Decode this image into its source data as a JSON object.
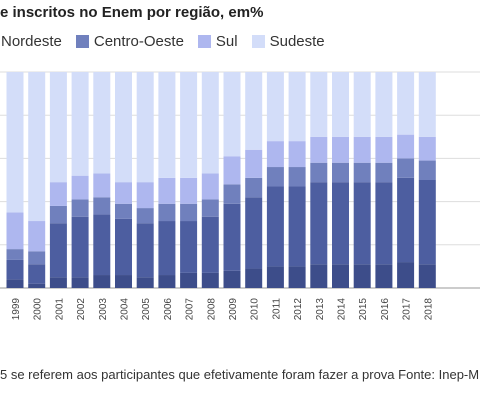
{
  "title": "e inscritos no Enem por região, em%",
  "note": "5 se referem aos participantes que efetivamente foram fazer a prova Fonte: Inep-MEC",
  "chart_data": {
    "type": "bar",
    "stacked": true,
    "ylim": [
      0,
      100
    ],
    "grid": true,
    "legend_position": "top-left",
    "categories": [
      "1999",
      "2000",
      "2001",
      "2002",
      "2003",
      "2004",
      "2005",
      "2006",
      "2007",
      "2008",
      "2009",
      "2010",
      "2011",
      "2012",
      "2013",
      "2014",
      "2015",
      "2016",
      "2017",
      "2018"
    ],
    "series": [
      {
        "name": "",
        "color": "#3d4d8a",
        "values": [
          4,
          2,
          5,
          5,
          6,
          6,
          5,
          6,
          7,
          7,
          8,
          9,
          10,
          10,
          11,
          11,
          11,
          11,
          12,
          11
        ]
      },
      {
        "name": "Nordeste",
        "color": "#4d5ea0",
        "values": [
          9,
          9,
          25,
          28,
          28,
          26,
          25,
          25,
          24,
          26,
          31,
          33,
          37,
          37,
          38,
          38,
          38,
          38,
          39,
          39
        ]
      },
      {
        "name": "Centro-Oeste",
        "color": "#7080bd",
        "values": [
          5,
          6,
          8,
          8,
          8,
          7,
          7,
          8,
          8,
          8,
          9,
          9,
          9,
          9,
          9,
          9,
          9,
          9,
          9,
          9
        ]
      },
      {
        "name": "Sul",
        "color": "#aeb7ef",
        "values": [
          17,
          14,
          11,
          11,
          11,
          10,
          12,
          12,
          12,
          12,
          13,
          13,
          12,
          12,
          12,
          12,
          12,
          12,
          11,
          11
        ]
      },
      {
        "name": "Sudeste",
        "color": "#d3ddf9",
        "values": [
          65,
          69,
          51,
          48,
          47,
          51,
          51,
          49,
          49,
          47,
          39,
          36,
          32,
          32,
          30,
          30,
          30,
          30,
          29,
          30
        ]
      }
    ]
  }
}
